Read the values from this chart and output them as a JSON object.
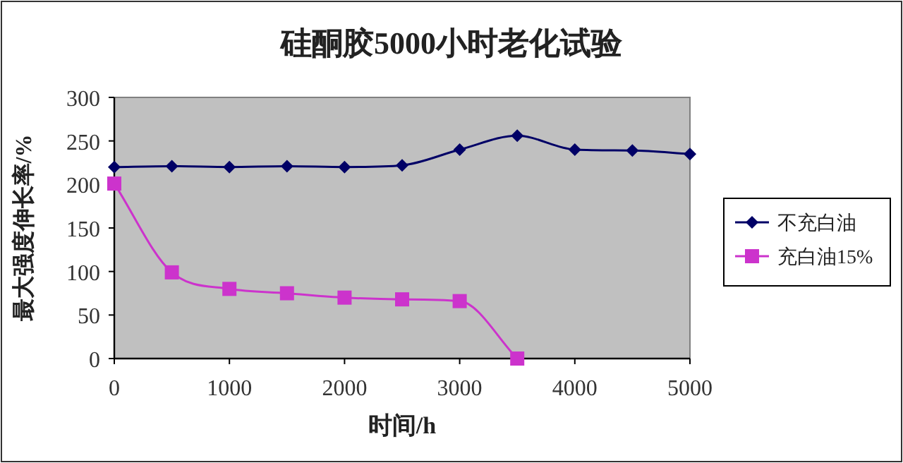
{
  "chart_data": {
    "type": "line",
    "title": "硅酮胶5000小时老化试验",
    "xlabel": "时间/h",
    "ylabel": "最大强度伸长率/%",
    "xlim": [
      0,
      5000
    ],
    "xticks": [
      0,
      1000,
      2000,
      3000,
      4000,
      5000
    ],
    "ylim": [
      0,
      300
    ],
    "yticks": [
      0,
      50,
      100,
      150,
      200,
      250,
      300
    ],
    "grid": false,
    "legend": "right",
    "series": [
      {
        "name": "不充白油",
        "color": "#000066",
        "marker": "diamond",
        "x": [
          0,
          500,
          1000,
          1500,
          2000,
          2500,
          3000,
          3500,
          4000,
          4500,
          5000
        ],
        "values": [
          220,
          221,
          220,
          221,
          220,
          222,
          240,
          256,
          240,
          239,
          235
        ]
      },
      {
        "name": "充白油15%",
        "color": "#cc33cc",
        "marker": "square",
        "x": [
          0,
          500,
          1000,
          1500,
          2000,
          2500,
          3000,
          3500
        ],
        "values": [
          201,
          99,
          80,
          75,
          70,
          68,
          66,
          0
        ]
      }
    ]
  }
}
